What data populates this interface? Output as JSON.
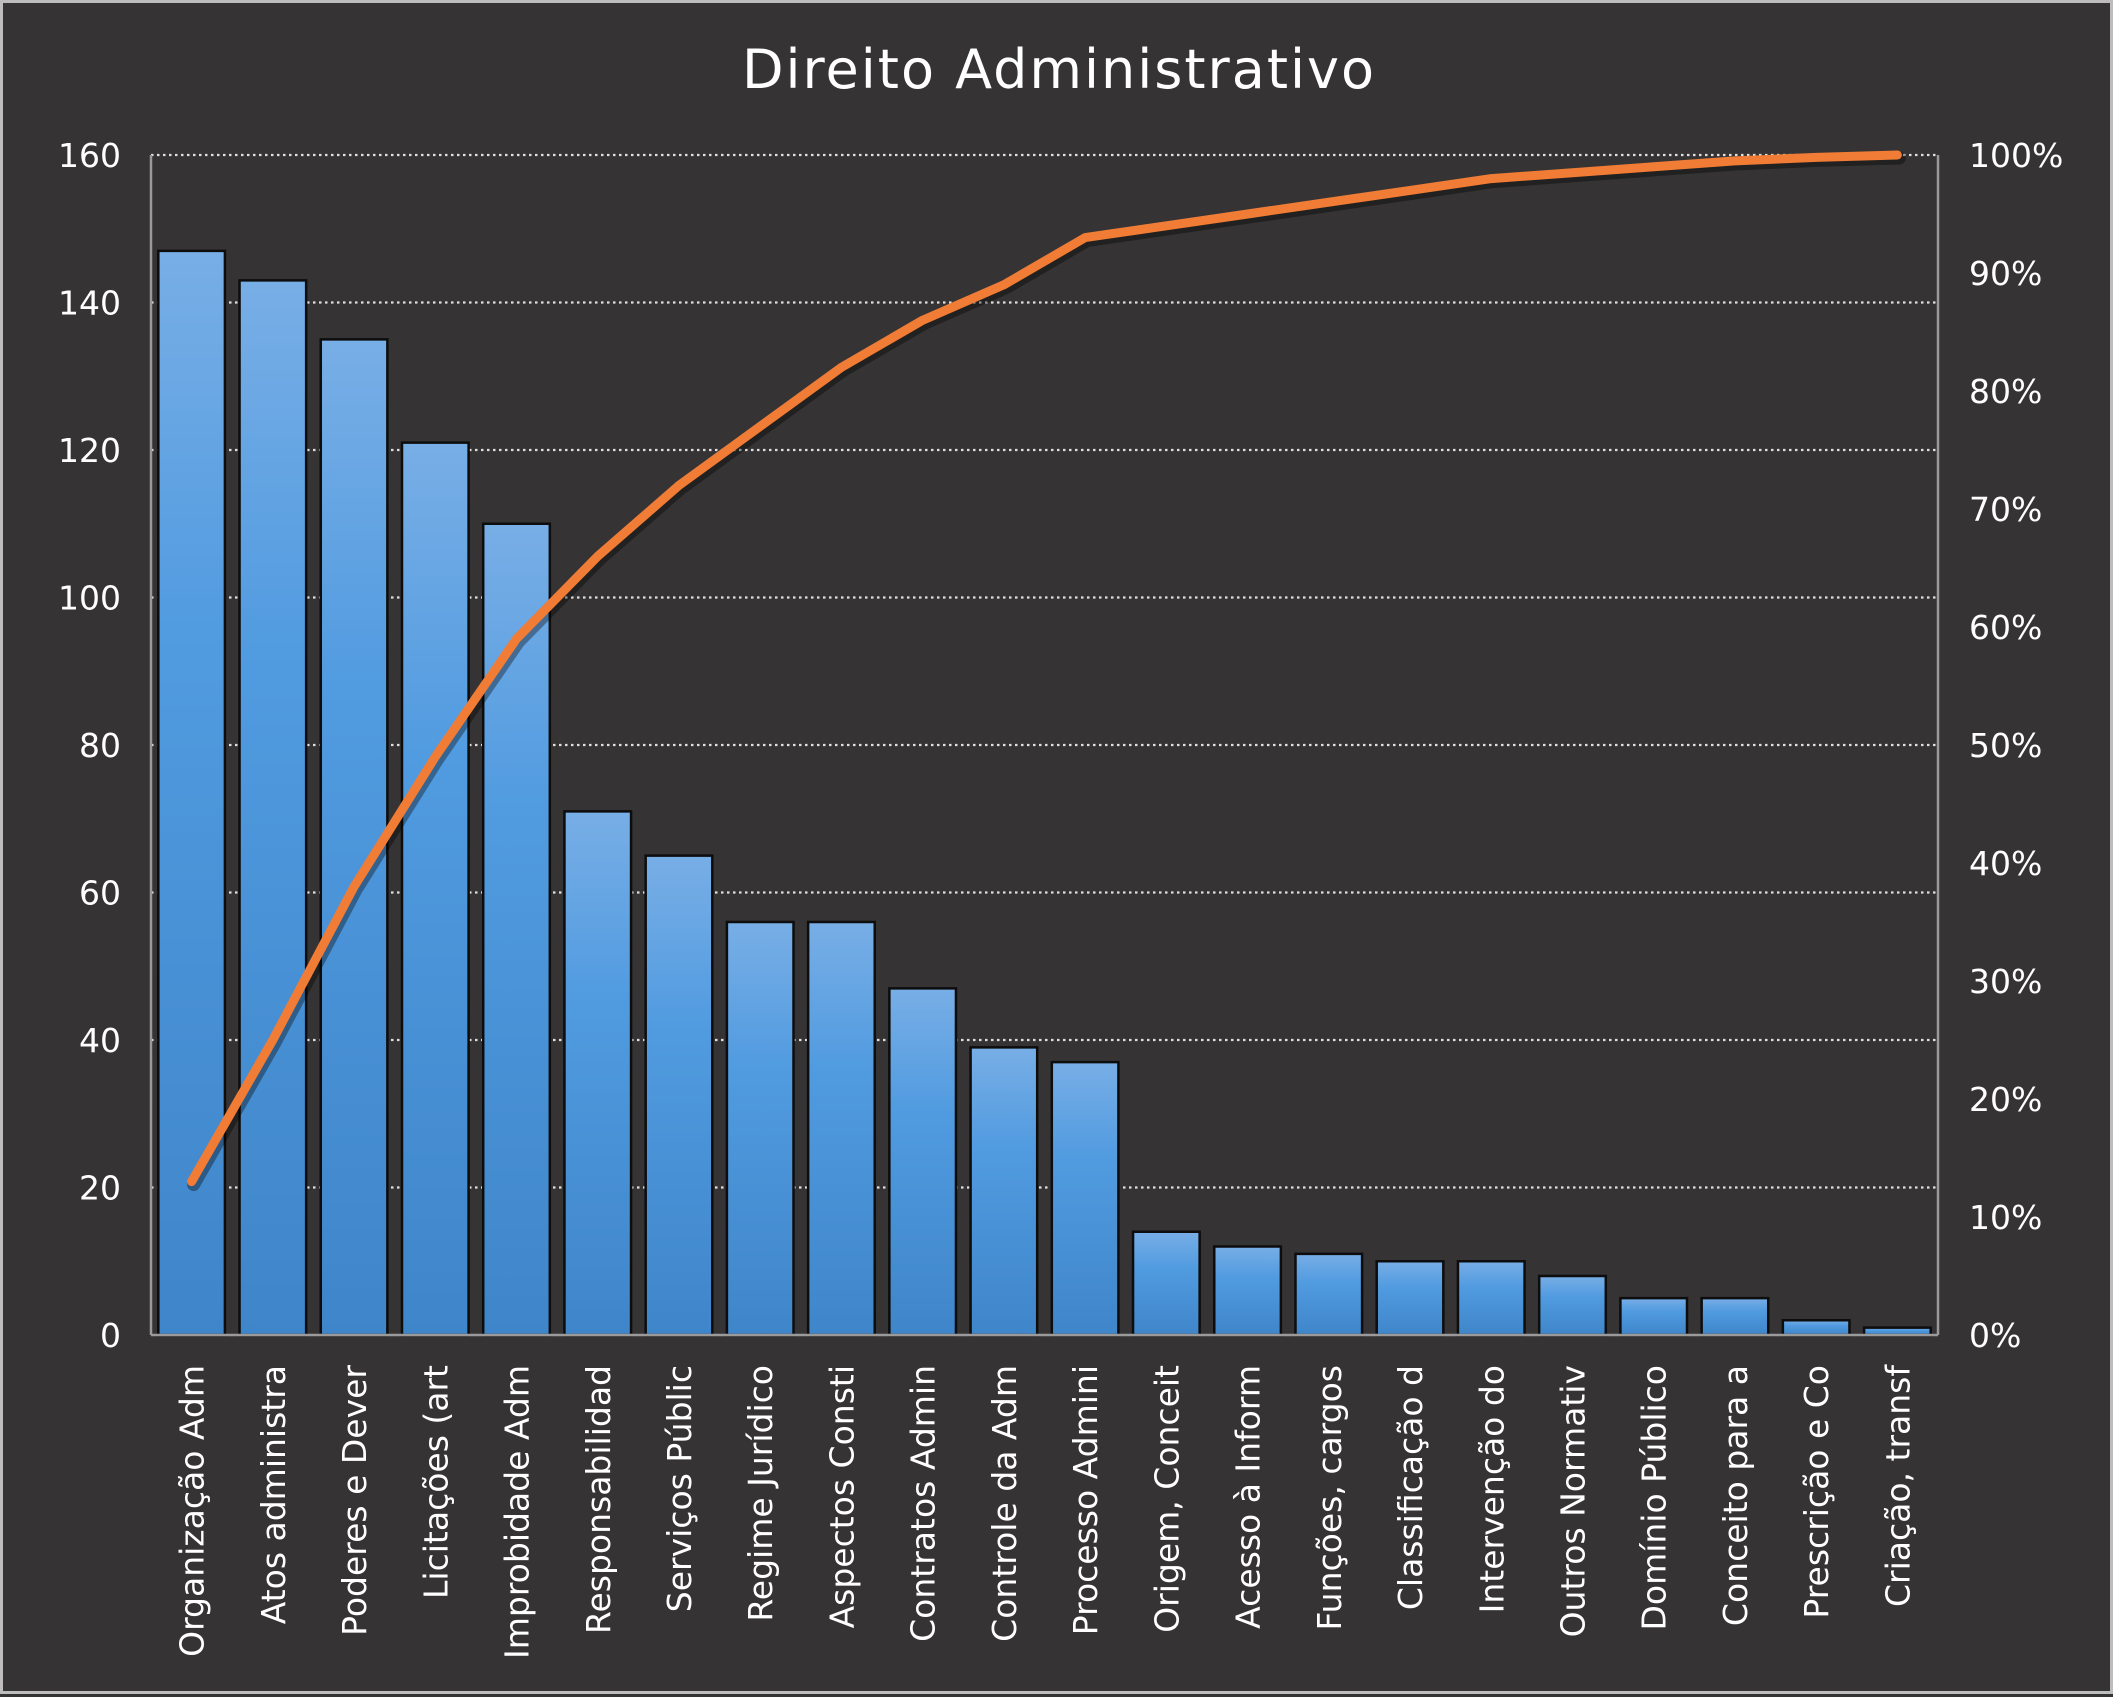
{
  "chart_data": {
    "type": "bar",
    "title": "Direito Administrativo",
    "categories": [
      "Organização Adm",
      "Atos administra",
      "Poderes e Dever",
      "Licitações (art",
      "Improbidade Adm",
      "Responsabilidad",
      "Serviços Públic",
      "Regime Jurídico",
      "Aspectos Consti",
      "Contratos Admin",
      "Controle da Adm",
      "Processo Admini",
      "Origem, Conceit",
      "Acesso à Inform",
      "Funções, cargos",
      "Classificação d",
      "Intervenção do",
      "Outros Normativ",
      "Domínio Público",
      "Conceito para a",
      "Prescrição e Co",
      "Criação, transf"
    ],
    "series": [
      {
        "type": "bar",
        "values": [
          147,
          143,
          135,
          121,
          110,
          71,
          65,
          56,
          56,
          47,
          39,
          37,
          14,
          12,
          11,
          10,
          10,
          8,
          5,
          5,
          2,
          1
        ]
      },
      {
        "type": "line",
        "axis": "right",
        "values": [
          0.13,
          0.25,
          0.38,
          0.49,
          0.59,
          0.66,
          0.72,
          0.77,
          0.82,
          0.86,
          0.89,
          0.93,
          0.94,
          0.95,
          0.96,
          0.97,
          0.98,
          0.985,
          0.99,
          0.995,
          0.998,
          1.0
        ]
      }
    ],
    "ylim": [
      0,
      160
    ],
    "y_ticks": [
      "0",
      "20",
      "40",
      "60",
      "80",
      "100",
      "120",
      "140",
      "160"
    ],
    "y2lim": [
      0,
      1
    ],
    "y2_ticks": [
      "0%",
      "10%",
      "20%",
      "30%",
      "40%",
      "50%",
      "60%",
      "70%",
      "80%",
      "90%",
      "100%"
    ],
    "grid": "horizontal dotted",
    "colors": {
      "bar": "#4a90d9",
      "bar_top": "#78aee6",
      "line": "#f07c35",
      "background": "#353333",
      "text": "#ffffff"
    }
  }
}
